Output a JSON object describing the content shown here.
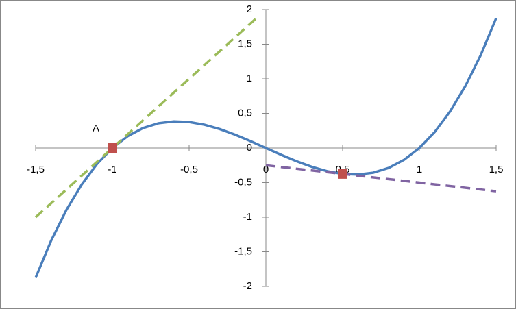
{
  "chart_data": {
    "type": "line",
    "xlim": [
      -1.5,
      1.5
    ],
    "ylim": [
      -2,
      2
    ],
    "xticks": [
      {
        "value": -1.5,
        "label": "-1,5"
      },
      -1,
      {
        "value": -0.5,
        "label": "-0,5"
      },
      0,
      {
        "value": 0.5,
        "label": "0,5"
      },
      1,
      {
        "value": 1.5,
        "label": "1,5"
      }
    ],
    "yticks": [
      -2,
      {
        "value": -1.5,
        "label": "-1,5"
      },
      -1,
      {
        "value": -0.5,
        "label": "-0,5"
      },
      0,
      {
        "value": 0.5,
        "label": "0,5"
      },
      1,
      {
        "value": 1.5,
        "label": "1,5"
      },
      2
    ],
    "series": [
      {
        "type": "line",
        "color": "#4a7ebb",
        "dashed": false,
        "x": [
          -1.5,
          -1.4,
          -1.3,
          -1.2,
          -1.1,
          -1.0,
          -0.9,
          -0.8,
          -0.7,
          -0.6,
          -0.5,
          -0.4,
          -0.3,
          -0.2,
          -0.1,
          0,
          0.1,
          0.2,
          0.3,
          0.4,
          0.5,
          0.6,
          0.7,
          0.8,
          0.9,
          1.0,
          1.1,
          1.2,
          1.3,
          1.4,
          1.5
        ],
        "values": [
          -1.875,
          -1.344,
          -0.897,
          -0.528,
          -0.231,
          0,
          0.171,
          0.288,
          0.357,
          0.384,
          0.375,
          0.336,
          0.273,
          0.192,
          0.099,
          0,
          -0.099,
          -0.192,
          -0.273,
          -0.336,
          -0.375,
          -0.384,
          -0.357,
          -0.288,
          -0.171,
          0,
          0.231,
          0.528,
          0.897,
          1.344,
          1.875
        ]
      },
      {
        "type": "line",
        "color": "#9bbb59",
        "dashed": true,
        "x": [
          -1.5,
          -0.05
        ],
        "values": [
          -1,
          1.9
        ]
      },
      {
        "type": "line",
        "color": "#8064a2",
        "dashed": true,
        "x": [
          0,
          1.5
        ],
        "values": [
          -0.25,
          -0.625
        ]
      },
      {
        "type": "scatter",
        "color": "#c0504d",
        "x": [
          -1,
          0.5
        ],
        "values": [
          0,
          -0.375
        ]
      }
    ],
    "annotation": "A"
  }
}
